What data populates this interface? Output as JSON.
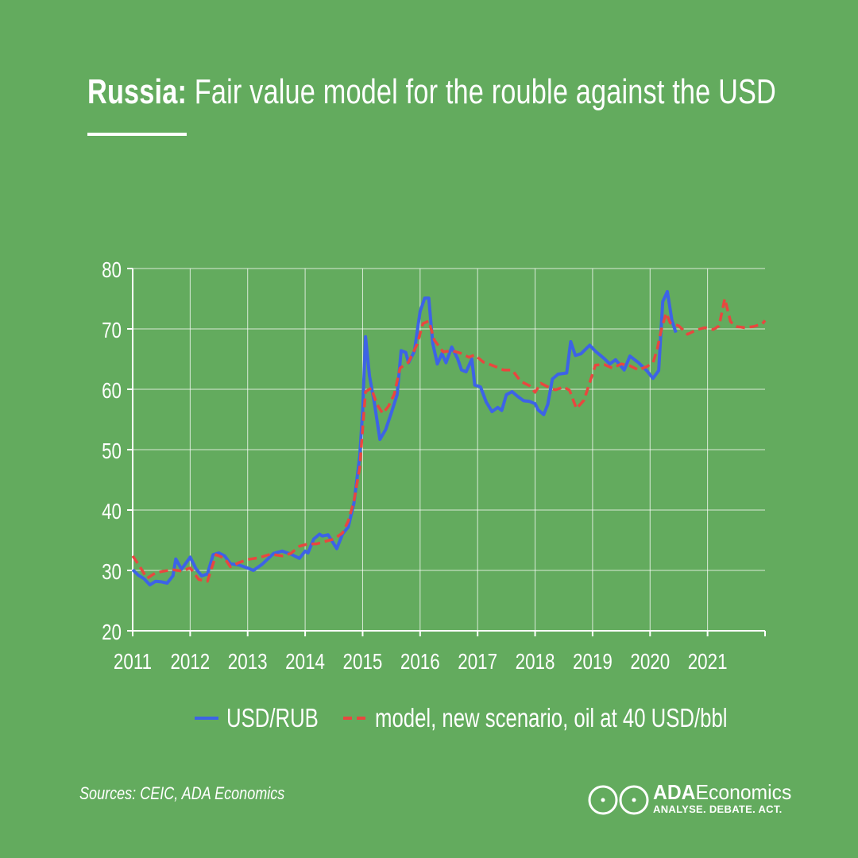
{
  "title": {
    "strong": "Russia:",
    "rest": " Fair value model for the rouble against the USD"
  },
  "chart_data": {
    "type": "line",
    "title": "Russia: Fair value model for the rouble against the USD",
    "xlabel": "",
    "ylabel": "",
    "xlim": [
      2011,
      2022
    ],
    "ylim": [
      20,
      80
    ],
    "y_ticks": [
      20,
      30,
      40,
      50,
      60,
      70,
      80
    ],
    "x_ticks": [
      "2011",
      "2012",
      "2013",
      "2014",
      "2015",
      "2016",
      "2017",
      "2018",
      "2019",
      "2020",
      "2021"
    ],
    "grid": true,
    "legend_position": "bottom",
    "series": [
      {
        "name": "USD/RUB",
        "color": "#3d63e6",
        "style": "solid",
        "points": [
          [
            2011.0,
            30.1
          ],
          [
            2011.1,
            29.2
          ],
          [
            2011.2,
            28.6
          ],
          [
            2011.3,
            27.6
          ],
          [
            2011.4,
            28.2
          ],
          [
            2011.5,
            28.1
          ],
          [
            2011.6,
            27.9
          ],
          [
            2011.7,
            29.1
          ],
          [
            2011.75,
            31.9
          ],
          [
            2011.85,
            30.2
          ],
          [
            2012.0,
            32.2
          ],
          [
            2012.1,
            30.3
          ],
          [
            2012.2,
            29.1
          ],
          [
            2012.3,
            29.4
          ],
          [
            2012.4,
            32.6
          ],
          [
            2012.5,
            32.9
          ],
          [
            2012.6,
            32.4
          ],
          [
            2012.7,
            31.1
          ],
          [
            2012.85,
            30.9
          ],
          [
            2013.0,
            30.4
          ],
          [
            2013.1,
            30.0
          ],
          [
            2013.25,
            31.0
          ],
          [
            2013.45,
            32.8
          ],
          [
            2013.6,
            33.2
          ],
          [
            2013.75,
            32.7
          ],
          [
            2013.9,
            32.0
          ],
          [
            2014.0,
            33.2
          ],
          [
            2014.05,
            32.9
          ],
          [
            2014.15,
            35.2
          ],
          [
            2014.25,
            36.0
          ],
          [
            2014.3,
            35.7
          ],
          [
            2014.4,
            35.9
          ],
          [
            2014.55,
            33.6
          ],
          [
            2014.65,
            36.0
          ],
          [
            2014.75,
            37.2
          ],
          [
            2014.85,
            41.2
          ],
          [
            2014.95,
            48.9
          ],
          [
            2015.0,
            56.5
          ],
          [
            2015.05,
            68.7
          ],
          [
            2015.12,
            62.2
          ],
          [
            2015.2,
            58.0
          ],
          [
            2015.3,
            51.7
          ],
          [
            2015.4,
            53.3
          ],
          [
            2015.5,
            56.1
          ],
          [
            2015.6,
            59.1
          ],
          [
            2015.67,
            66.4
          ],
          [
            2015.75,
            66.1
          ],
          [
            2015.8,
            64.4
          ],
          [
            2015.9,
            66.3
          ],
          [
            2016.0,
            72.9
          ],
          [
            2016.08,
            75.1
          ],
          [
            2016.15,
            75.1
          ],
          [
            2016.22,
            67.6
          ],
          [
            2016.3,
            64.2
          ],
          [
            2016.38,
            65.9
          ],
          [
            2016.45,
            64.4
          ],
          [
            2016.55,
            67.0
          ],
          [
            2016.65,
            65.1
          ],
          [
            2016.72,
            63.2
          ],
          [
            2016.8,
            62.9
          ],
          [
            2016.9,
            65.0
          ],
          [
            2016.95,
            60.7
          ],
          [
            2017.05,
            60.4
          ],
          [
            2017.15,
            57.9
          ],
          [
            2017.25,
            56.3
          ],
          [
            2017.35,
            57.0
          ],
          [
            2017.42,
            56.5
          ],
          [
            2017.5,
            59.1
          ],
          [
            2017.6,
            59.6
          ],
          [
            2017.7,
            58.8
          ],
          [
            2017.8,
            58.1
          ],
          [
            2017.9,
            58.0
          ],
          [
            2018.0,
            57.6
          ],
          [
            2018.05,
            56.6
          ],
          [
            2018.15,
            55.8
          ],
          [
            2018.22,
            57.5
          ],
          [
            2018.3,
            61.7
          ],
          [
            2018.4,
            62.5
          ],
          [
            2018.55,
            62.7
          ],
          [
            2018.62,
            67.9
          ],
          [
            2018.7,
            65.6
          ],
          [
            2018.8,
            65.9
          ],
          [
            2018.95,
            67.3
          ],
          [
            2019.05,
            66.3
          ],
          [
            2019.2,
            65.1
          ],
          [
            2019.3,
            64.2
          ],
          [
            2019.4,
            64.9
          ],
          [
            2019.55,
            63.2
          ],
          [
            2019.65,
            65.5
          ],
          [
            2019.8,
            64.4
          ],
          [
            2019.95,
            63.0
          ],
          [
            2020.05,
            61.8
          ],
          [
            2020.15,
            63.1
          ],
          [
            2020.22,
            74.5
          ],
          [
            2020.3,
            76.2
          ],
          [
            2020.38,
            71.4
          ],
          [
            2020.45,
            69.4
          ]
        ]
      },
      {
        "name": "model, new scenario, oil at 40 USD/bbl",
        "color": "#e8473f",
        "style": "dashed",
        "points": [
          [
            2011.0,
            32.4
          ],
          [
            2011.1,
            31.0
          ],
          [
            2011.25,
            28.7
          ],
          [
            2011.4,
            29.6
          ],
          [
            2011.55,
            29.9
          ],
          [
            2011.7,
            30.1
          ],
          [
            2011.85,
            29.9
          ],
          [
            2012.0,
            30.4
          ],
          [
            2012.15,
            28.5
          ],
          [
            2012.3,
            28.2
          ],
          [
            2012.45,
            32.6
          ],
          [
            2012.6,
            32.0
          ],
          [
            2012.7,
            30.6
          ],
          [
            2012.85,
            31.3
          ],
          [
            2013.0,
            31.8
          ],
          [
            2013.2,
            32.1
          ],
          [
            2013.4,
            32.7
          ],
          [
            2013.6,
            32.4
          ],
          [
            2013.75,
            32.8
          ],
          [
            2013.9,
            34.0
          ],
          [
            2014.05,
            34.4
          ],
          [
            2014.2,
            34.4
          ],
          [
            2014.35,
            34.8
          ],
          [
            2014.5,
            35.2
          ],
          [
            2014.65,
            36.2
          ],
          [
            2014.75,
            38.2
          ],
          [
            2014.85,
            41.5
          ],
          [
            2014.95,
            47.0
          ],
          [
            2015.05,
            59.6
          ],
          [
            2015.15,
            60.2
          ],
          [
            2015.25,
            57.5
          ],
          [
            2015.35,
            56.0
          ],
          [
            2015.45,
            57.2
          ],
          [
            2015.55,
            59.2
          ],
          [
            2015.65,
            63.5
          ],
          [
            2015.8,
            64.5
          ],
          [
            2015.95,
            67.5
          ],
          [
            2016.05,
            70.9
          ],
          [
            2016.15,
            71.3
          ],
          [
            2016.25,
            68.1
          ],
          [
            2016.4,
            66.2
          ],
          [
            2016.55,
            66.4
          ],
          [
            2016.7,
            66.0
          ],
          [
            2016.85,
            65.3
          ],
          [
            2016.95,
            65.7
          ],
          [
            2017.1,
            64.5
          ],
          [
            2017.3,
            63.8
          ],
          [
            2017.45,
            63.2
          ],
          [
            2017.6,
            63.2
          ],
          [
            2017.75,
            61.3
          ],
          [
            2017.9,
            60.6
          ],
          [
            2018.0,
            59.5
          ],
          [
            2018.1,
            61.0
          ],
          [
            2018.2,
            60.5
          ],
          [
            2018.35,
            59.9
          ],
          [
            2018.5,
            60.4
          ],
          [
            2018.6,
            59.8
          ],
          [
            2018.72,
            56.8
          ],
          [
            2018.85,
            58.2
          ],
          [
            2018.95,
            61.1
          ],
          [
            2019.05,
            64.0
          ],
          [
            2019.2,
            64.1
          ],
          [
            2019.35,
            63.5
          ],
          [
            2019.5,
            64.2
          ],
          [
            2019.65,
            63.9
          ],
          [
            2019.8,
            63.2
          ],
          [
            2019.95,
            63.8
          ],
          [
            2020.05,
            64.4
          ],
          [
            2020.12,
            66.5
          ],
          [
            2020.2,
            70.0
          ],
          [
            2020.28,
            72.6
          ],
          [
            2020.35,
            71.0
          ],
          [
            2020.5,
            70.5
          ],
          [
            2020.65,
            69.1
          ],
          [
            2020.8,
            69.8
          ],
          [
            2020.95,
            70.2
          ],
          [
            2021.1,
            69.9
          ],
          [
            2021.2,
            70.5
          ],
          [
            2021.3,
            75.0
          ],
          [
            2021.4,
            71.2
          ],
          [
            2021.5,
            70.4
          ],
          [
            2021.65,
            70.2
          ],
          [
            2021.8,
            70.4
          ],
          [
            2021.95,
            70.8
          ],
          [
            2022.0,
            71.4
          ]
        ]
      }
    ]
  },
  "legend": {
    "usd": "USD/RUB",
    "model": "model, new scenario, oil at 40 USD/bbl"
  },
  "source": "Sources: CEIC, ADA Economics",
  "logo": {
    "name_bold": "ADA",
    "name_light": "Economics",
    "tagline": "ANALYSE. DEBATE. ACT."
  },
  "colors": {
    "background": "#63ab5e",
    "usd_line": "#3d63e6",
    "model_line": "#e8473f",
    "text": "#ffffff"
  }
}
